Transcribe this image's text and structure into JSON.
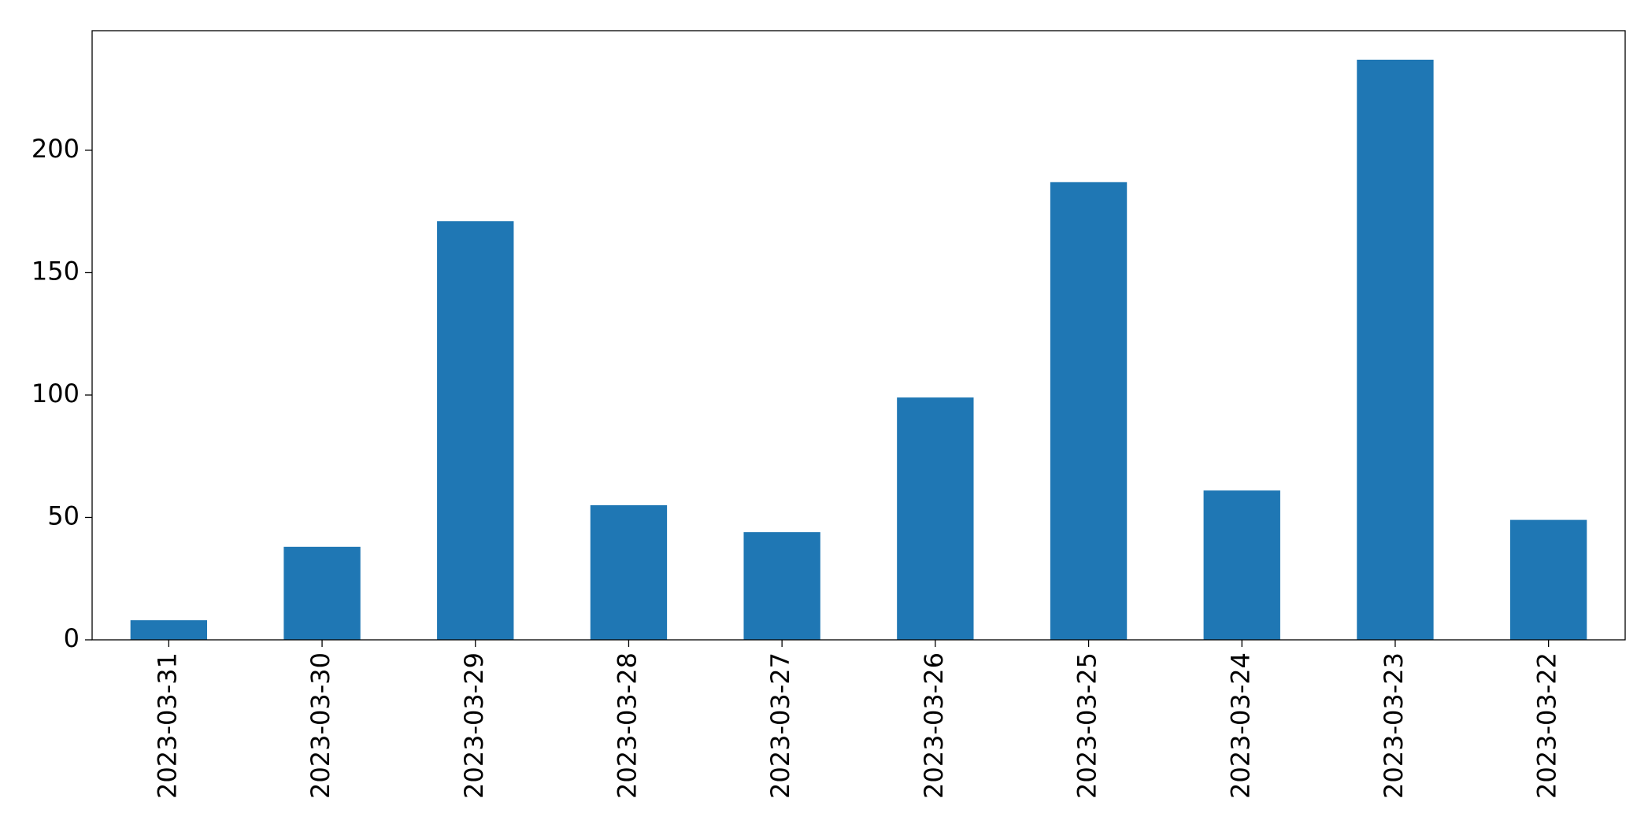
{
  "chart_data": {
    "type": "bar",
    "categories": [
      "2023-03-31",
      "2023-03-30",
      "2023-03-29",
      "2023-03-28",
      "2023-03-27",
      "2023-03-26",
      "2023-03-25",
      "2023-03-24",
      "2023-03-23",
      "2023-03-22"
    ],
    "values": [
      8,
      38,
      171,
      55,
      44,
      99,
      187,
      61,
      237,
      49
    ],
    "color": "#1f77b4",
    "ylim": [
      0,
      248.85
    ],
    "yticks": [
      0,
      50,
      100,
      150,
      200
    ],
    "grid": false
  }
}
